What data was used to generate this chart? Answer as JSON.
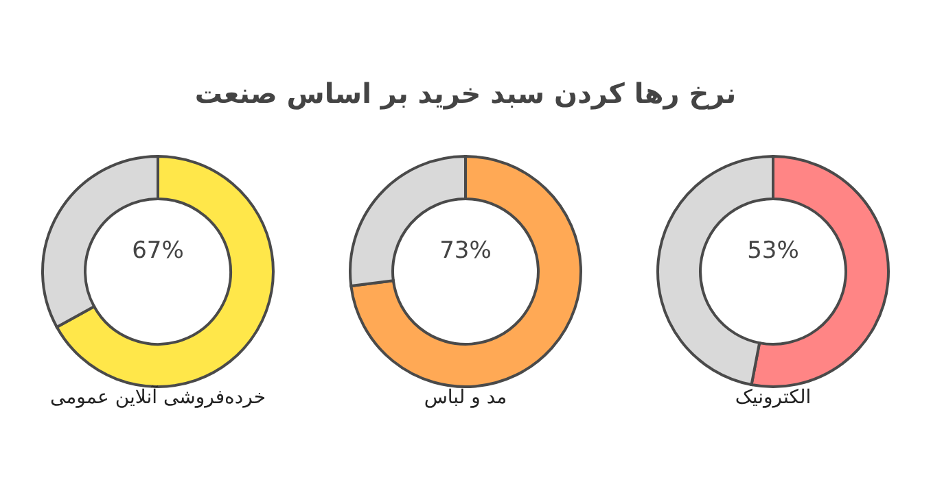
{
  "chart_data": [
    {
      "type": "donut",
      "xlabel": "خرده‌فروشی آنلاین عمومی",
      "categories": [
        null,
        null
      ],
      "values": [
        67,
        33
      ],
      "colors": [
        "#ffe74a",
        "#d9d9d9"
      ],
      "value_labels": [
        "67%",
        null
      ]
    },
    {
      "type": "donut",
      "title": "نرخ رها کردن سبد خرید بر اساس صنعت",
      "xlabel": "مد و لباس",
      "categories": [
        null,
        null
      ],
      "values": [
        73,
        27
      ],
      "colors": [
        "#ffa955",
        "#d9d9d9"
      ],
      "value_labels": [
        "73%",
        null
      ]
    },
    {
      "type": "donut",
      "xlabel": "الکترونیک",
      "categories": [
        null,
        null
      ],
      "values": [
        53,
        47
      ],
      "colors": [
        "#ff8585",
        "#d9d9d9"
      ],
      "value_labels": [
        "53%",
        null
      ]
    }
  ]
}
